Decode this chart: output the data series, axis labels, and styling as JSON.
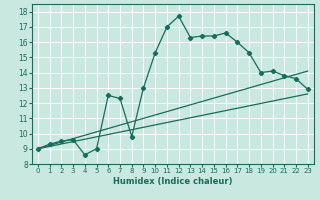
{
  "title": "",
  "xlabel": "Humidex (Indice chaleur)",
  "ylabel": "",
  "background_color": "#c8e8e0",
  "grid_color": "#aad4cc",
  "line_color": "#1a6b5a",
  "xlim": [
    -0.5,
    23.5
  ],
  "ylim": [
    8,
    18.5
  ],
  "xticks": [
    0,
    1,
    2,
    3,
    4,
    5,
    6,
    7,
    8,
    9,
    10,
    11,
    12,
    13,
    14,
    15,
    16,
    17,
    18,
    19,
    20,
    21,
    22,
    23
  ],
  "yticks": [
    8,
    9,
    10,
    11,
    12,
    13,
    14,
    15,
    16,
    17,
    18
  ],
  "curve1_x": [
    0,
    1,
    2,
    3,
    4,
    5,
    6,
    7,
    8,
    9,
    10,
    11,
    12,
    13,
    14,
    15,
    16,
    17,
    18,
    19,
    20,
    21,
    22,
    23
  ],
  "curve1_y": [
    9.0,
    9.3,
    9.5,
    9.6,
    8.6,
    9.0,
    12.5,
    12.3,
    9.8,
    13.0,
    15.3,
    17.0,
    17.7,
    16.3,
    16.4,
    16.4,
    16.6,
    16.0,
    15.3,
    14.0,
    14.1,
    13.8,
    13.6,
    12.9
  ],
  "curve2_x": [
    0,
    23
  ],
  "curve2_y": [
    9.0,
    12.6
  ],
  "curve3_x": [
    0,
    23
  ],
  "curve3_y": [
    9.0,
    14.1
  ]
}
